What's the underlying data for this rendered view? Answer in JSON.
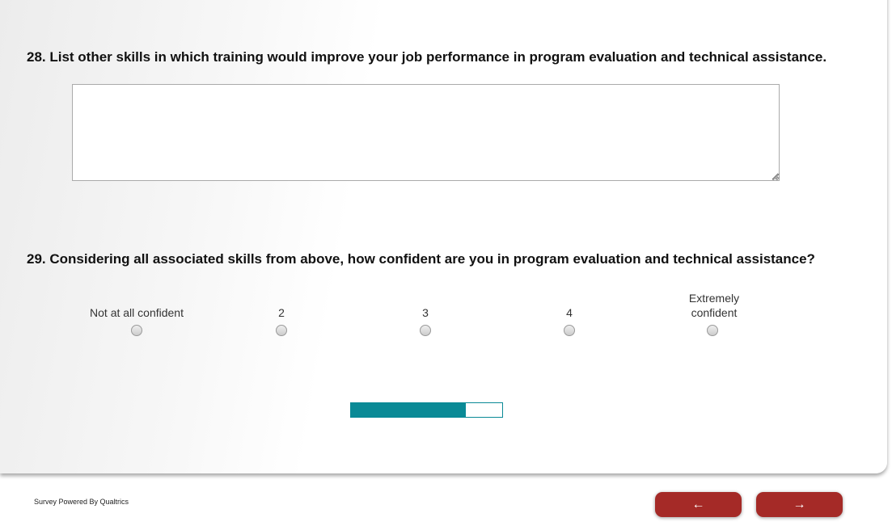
{
  "questions": [
    {
      "text": "28. List other skills in which training would improve your job performance in program evaluation and technical assistance.",
      "answer": ""
    },
    {
      "text": "29. Considering all associated skills from above, how confident are you in program evaluation and technical assistance?",
      "options": [
        "Not at all confident",
        "2",
        "3",
        "4",
        "Extremely confident"
      ]
    }
  ],
  "progress": {
    "percent": 76,
    "color": "#0a8a96"
  },
  "footer": {
    "text": "Survey Powered By Qualtrics"
  },
  "nav": {
    "back_label": "←",
    "next_label": "→",
    "color": "#a52a27"
  }
}
